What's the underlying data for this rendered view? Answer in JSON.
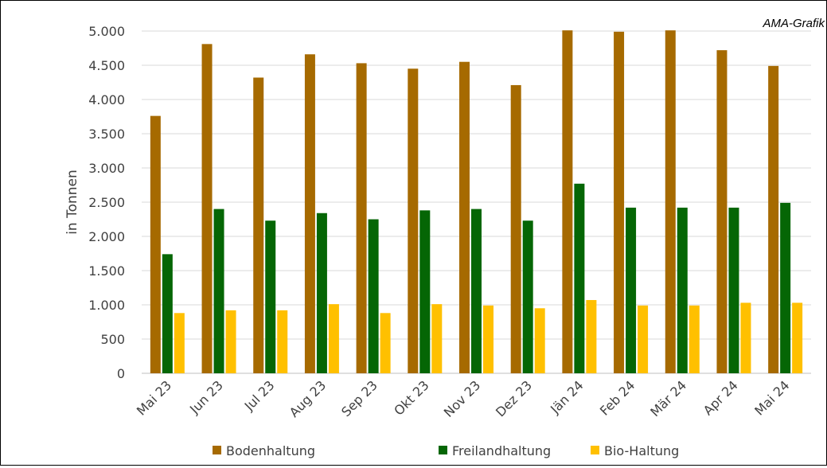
{
  "credit": "AMA-Grafik",
  "chart_data": {
    "type": "bar",
    "ylabel": "in Tonnen",
    "ylim": [
      0,
      5000
    ],
    "yticks": [
      0,
      500,
      1000,
      1500,
      2000,
      2500,
      3000,
      3500,
      4000,
      4500,
      5000
    ],
    "ytick_labels": [
      "0",
      "500",
      "1.000",
      "1.500",
      "2.000",
      "2.500",
      "3.000",
      "3.500",
      "4.000",
      "4.500",
      "5.000"
    ],
    "categories": [
      "Mai 23",
      "Jun 23",
      "Jul 23",
      "Aug 23",
      "Sep 23",
      "Okt 23",
      "Nov 23",
      "Dez 23",
      "Jän 24",
      "Feb 24",
      "Mär 24",
      "Apr 24",
      "Mai 24"
    ],
    "series": [
      {
        "name": "Bodenhaltung",
        "color": "#a66a00",
        "values": [
          3760,
          4810,
          4320,
          4660,
          4530,
          4450,
          4550,
          4210,
          5010,
          4990,
          5010,
          4720,
          4490
        ]
      },
      {
        "name": "Freilandhaltung",
        "color": "#056605",
        "values": [
          1740,
          2400,
          2230,
          2340,
          2250,
          2380,
          2400,
          2230,
          2770,
          2420,
          2420,
          2420,
          2490
        ]
      },
      {
        "name": "Bio-Haltung",
        "color": "#ffc000",
        "values": [
          880,
          920,
          920,
          1010,
          880,
          1010,
          990,
          950,
          1070,
          990,
          990,
          1030,
          1030
        ]
      }
    ],
    "legend_position": "bottom",
    "grid": "horizontal"
  }
}
